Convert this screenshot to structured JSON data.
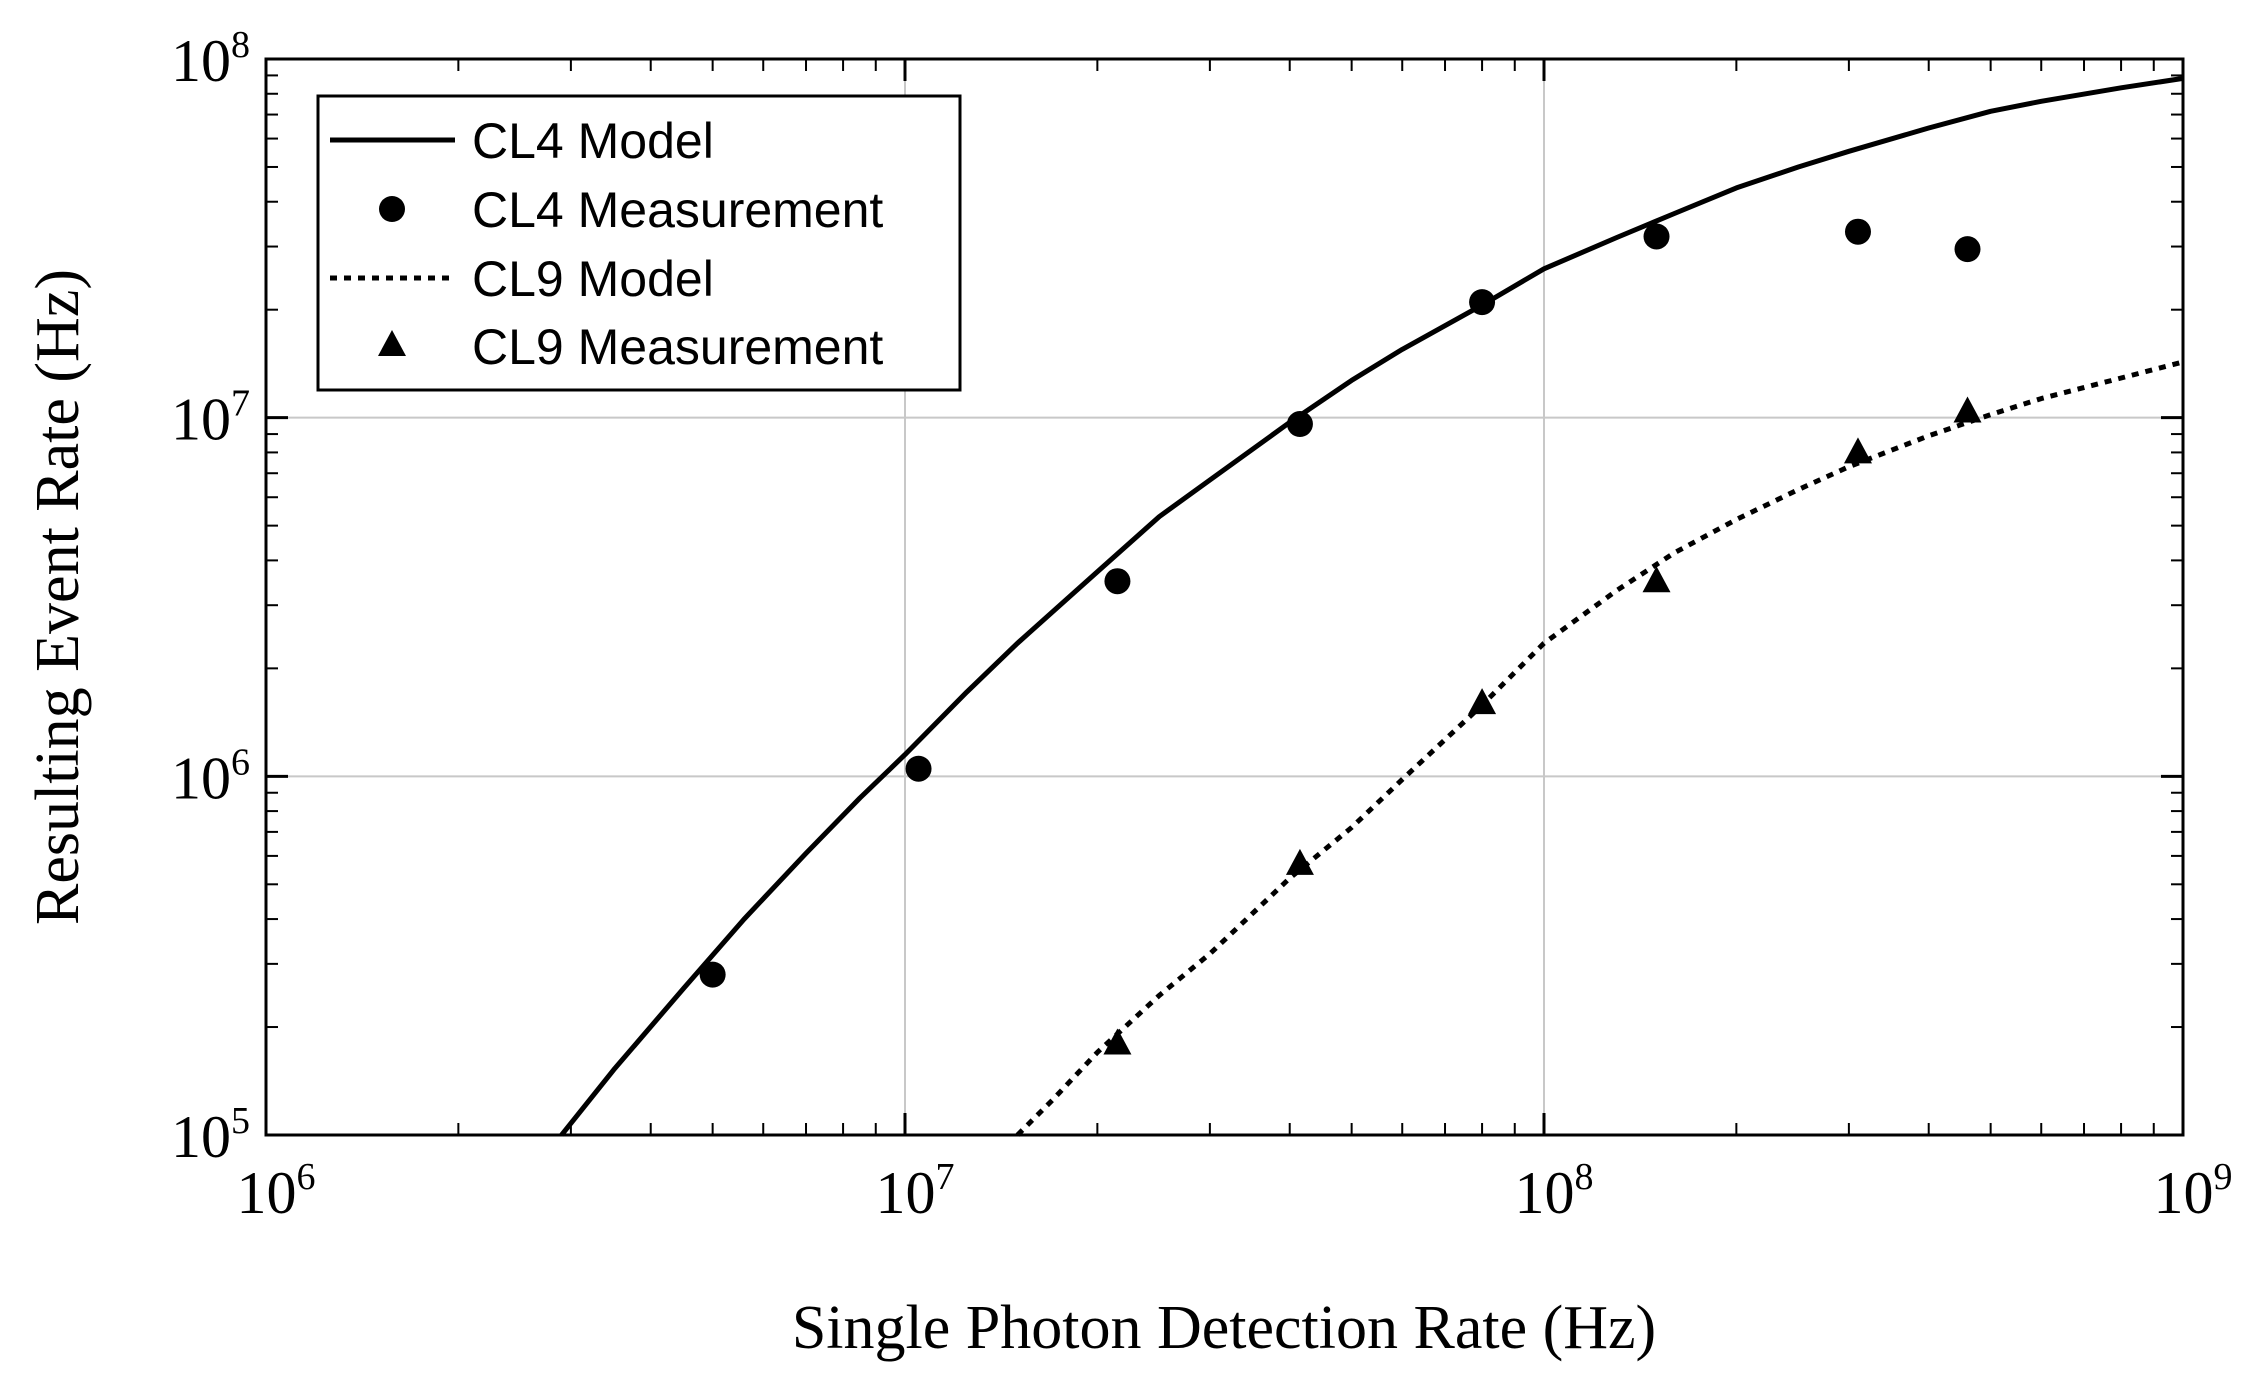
{
  "chart_data": {
    "type": "line",
    "title": "",
    "xlabel": "Single Photon Detection Rate (Hz)",
    "ylabel": "Resulting Event Rate (Hz)",
    "xscale": "log",
    "yscale": "log",
    "xlim": [
      1000000,
      1000000000
    ],
    "ylim": [
      100000,
      100000000
    ],
    "grid": true,
    "legend_position": "top-left",
    "x_ticks": [
      {
        "base": "10",
        "exp": "6"
      },
      {
        "base": "10",
        "exp": "7"
      },
      {
        "base": "10",
        "exp": "8"
      },
      {
        "base": "10",
        "exp": "9"
      }
    ],
    "y_ticks": [
      {
        "base": "10",
        "exp": "5"
      },
      {
        "base": "10",
        "exp": "6"
      },
      {
        "base": "10",
        "exp": "7"
      },
      {
        "base": "10",
        "exp": "8"
      }
    ],
    "series": [
      {
        "name": "CL4 Model",
        "style": "solid-line",
        "x": [
          2900000,
          3500000,
          4500000,
          5600000,
          7000000,
          8500000,
          10000000,
          12500000,
          15000000,
          20000000,
          25000000,
          30000000,
          40000000,
          50000000,
          60000000,
          80000000,
          100000000,
          130000000,
          160000000,
          200000000,
          250000000,
          300000000,
          400000000,
          500000000,
          600000000,
          800000000,
          1000000000
        ],
        "values": [
          100000,
          152000,
          256000,
          400000,
          610000,
          870000,
          1150000,
          1720000,
          2350000,
          3720000,
          5300000,
          6700000,
          9700000,
          12700000,
          15500000,
          20600000,
          26000000,
          31800000,
          37100000,
          43700000,
          50000000,
          55300000,
          64200000,
          71500000,
          76200000,
          83100000,
          88300000
        ]
      },
      {
        "name": "CL4 Measurement",
        "style": "circle-marker",
        "x": [
          5000000,
          10500000,
          21500000,
          41500000,
          80000000,
          150000000,
          310000000,
          460000000
        ],
        "values": [
          280000,
          1050000,
          3500000,
          9600000,
          21000000,
          32000000,
          33000000,
          29500000
        ]
      },
      {
        "name": "CL9 Model",
        "style": "dotted-line",
        "x": [
          15000000,
          17000000,
          20000000,
          25000000,
          30000000,
          40000000,
          50000000,
          60000000,
          80000000,
          100000000,
          130000000,
          160000000,
          200000000,
          250000000,
          300000000,
          400000000,
          500000000,
          600000000,
          800000000,
          1000000000
        ],
        "values": [
          100000,
          125000,
          170000,
          245000,
          320000,
          520000,
          720000,
          980000,
          1580000,
          2350000,
          3300000,
          4200000,
          5200000,
          6300000,
          7300000,
          8900000,
          10200000,
          11300000,
          12900000,
          14300000
        ]
      },
      {
        "name": "CL9 Measurement",
        "style": "triangle-marker",
        "x": [
          21500000,
          41500000,
          80000000,
          150000000,
          310000000,
          460000000
        ],
        "values": [
          180000,
          570000,
          1600000,
          3500000,
          8000000,
          10400000
        ]
      }
    ]
  }
}
